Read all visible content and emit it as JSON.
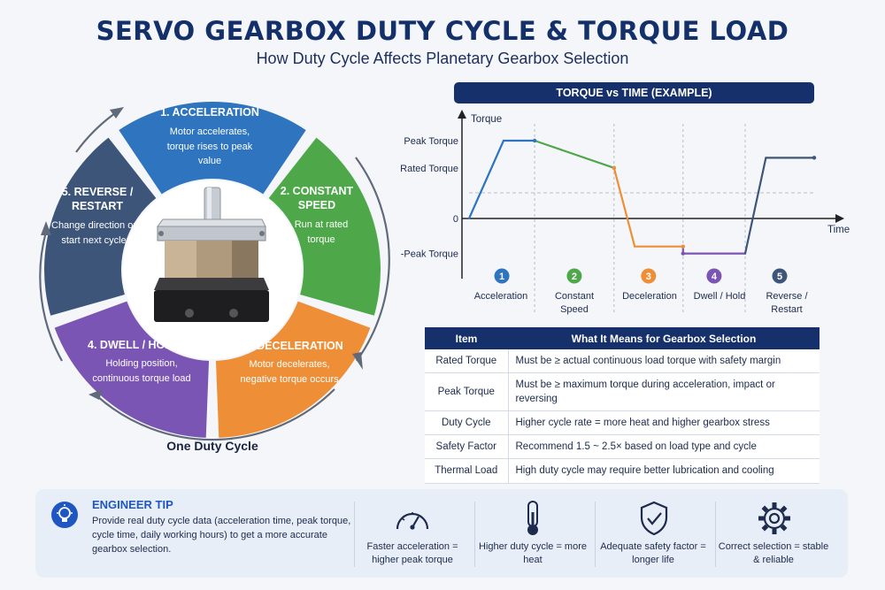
{
  "header": {
    "title": "SERVO GEARBOX DUTY CYCLE & TORQUE LOAD",
    "subtitle": "How Duty Cycle Affects Planetary Gearbox Selection"
  },
  "cycle": {
    "caption": "One Duty Cycle",
    "segments": [
      {
        "title": "1. ACCELERATION",
        "desc": "Motor accelerates, torque rises to peak value",
        "color": "#2e74bf"
      },
      {
        "title": "2. CONSTANT SPEED",
        "desc": "Run at rated torque",
        "color": "#4ea84a"
      },
      {
        "title": "3. DECELERATION",
        "desc": "Motor decelerates, negative torque occurs",
        "color": "#ee8f37"
      },
      {
        "title": "4. DWELL / HOLD",
        "desc": "Holding position, continuous torque load",
        "color": "#7a55b4"
      },
      {
        "title": "5. REVERSE / RESTART",
        "desc": "Change direction or start next cycle",
        "color": "#3d5579"
      }
    ]
  },
  "chart": {
    "header": "TORQUE vs TIME (EXAMPLE)",
    "ylabel": "Torque",
    "xlabel": "Time",
    "y_tick_labels": {
      "peak": "Peak Torque",
      "rated": "Rated Torque",
      "zero": "0",
      "neg_peak": "-Peak Torque"
    },
    "y_levels": {
      "peak": 1.0,
      "rated": 0.65,
      "zero": 0,
      "neg_peak": -0.45
    },
    "phases": [
      {
        "number": "1",
        "label": "Acceleration",
        "color": "#2e74bf"
      },
      {
        "number": "2",
        "label": "Constant Speed",
        "color": "#4ea84a"
      },
      {
        "number": "3",
        "label": "Deceleration",
        "color": "#ee8f37"
      },
      {
        "number": "4",
        "label": "Dwell / Hold",
        "color": "#7a55b4"
      },
      {
        "number": "5",
        "label": "Reverse / Restart",
        "color": "#3d5579"
      }
    ]
  },
  "chart_data": {
    "type": "line",
    "title": "TORQUE vs TIME (EXAMPLE)",
    "xlabel": "Time",
    "ylabel": "Torque",
    "grid": false,
    "points": [
      {
        "t": 0.0,
        "torque": 0.0,
        "phase": 1
      },
      {
        "t": 0.1,
        "torque": 1.0,
        "phase": 1
      },
      {
        "t": 0.19,
        "torque": 1.0,
        "phase": 1
      },
      {
        "t": 0.42,
        "torque": 0.65,
        "phase": 2
      },
      {
        "t": 0.42,
        "torque": 0.65,
        "phase": 3
      },
      {
        "t": 0.48,
        "torque": -0.36,
        "phase": 3
      },
      {
        "t": 0.62,
        "torque": -0.36,
        "phase": 3
      },
      {
        "t": 0.62,
        "torque": -0.45,
        "phase": 4
      },
      {
        "t": 0.8,
        "torque": -0.45,
        "phase": 4
      },
      {
        "t": 0.8,
        "torque": -0.45,
        "phase": 5
      },
      {
        "t": 0.86,
        "torque": 0.78,
        "phase": 5
      },
      {
        "t": 1.0,
        "torque": 0.78,
        "phase": 5
      }
    ]
  },
  "table": {
    "headers": [
      "Item",
      "What It Means for Gearbox Selection"
    ],
    "rows": [
      {
        "item": "Rated Torque",
        "meaning": "Must be ≥ actual continuous load torque with safety margin"
      },
      {
        "item": "Peak Torque",
        "meaning": "Must be ≥ maximum torque during acceleration, impact or reversing"
      },
      {
        "item": "Duty Cycle",
        "meaning": "Higher cycle rate = more heat and higher gearbox stress"
      },
      {
        "item": "Safety Factor",
        "meaning": "Recommend 1.5 ~ 2.5× based on load type and cycle"
      },
      {
        "item": "Thermal Load",
        "meaning": "High duty cycle may require better lubrication and cooling"
      }
    ]
  },
  "tip": {
    "title": "ENGINEER TIP",
    "text": "Provide real duty cycle data (acceleration time, peak torque, cycle time, daily working hours) to get a more accurate gearbox selection.",
    "items": [
      {
        "icon": "gauge-icon",
        "caption": "Faster acceleration = higher peak torque"
      },
      {
        "icon": "thermometer-icon",
        "caption": "Higher duty cycle = more heat"
      },
      {
        "icon": "shield-check-icon",
        "caption": "Adequate safety factor = longer life"
      },
      {
        "icon": "gear-icon",
        "caption": "Correct selection = stable & reliable"
      }
    ]
  }
}
